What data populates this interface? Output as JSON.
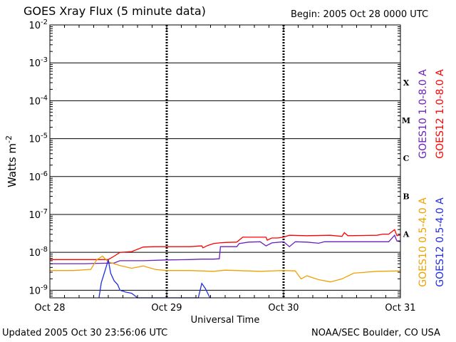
{
  "header": {
    "title": "GOES Xray Flux (5 minute data)",
    "begin": "Begin:  2005 Oct 28 0000 UTC"
  },
  "footer": {
    "updated": "Updated 2005 Oct 30 23:56:06 UTC",
    "source": "NOAA/SEC Boulder, CO USA"
  },
  "chart_data": {
    "type": "line",
    "xlabel": "Universal Time",
    "ylabel": "Watts m",
    "ylabel_sup": "-2",
    "yscale": "log",
    "ylim_exp": [
      -9.2,
      -2
    ],
    "x_ticks": [
      "Oct 28",
      "Oct 29",
      "Oct 30",
      "Oct 31"
    ],
    "xlim_days": [
      0,
      3
    ],
    "y_ticks": [
      {
        "base": "10",
        "exp": "-2",
        "value_exp": -2
      },
      {
        "base": "10",
        "exp": "-3",
        "value_exp": -3
      },
      {
        "base": "10",
        "exp": "-4",
        "value_exp": -4
      },
      {
        "base": "10",
        "exp": "-5",
        "value_exp": -5
      },
      {
        "base": "10",
        "exp": "-6",
        "value_exp": -6
      },
      {
        "base": "10",
        "exp": "-7",
        "value_exp": -7
      },
      {
        "base": "10",
        "exp": "-8",
        "value_exp": -8
      },
      {
        "base": "10",
        "exp": "-9",
        "value_exp": -9
      }
    ],
    "flare_classes": [
      {
        "label": "X",
        "value_exp": -4
      },
      {
        "label": "M",
        "value_exp": -5
      },
      {
        "label": "C",
        "value_exp": -6
      },
      {
        "label": "B",
        "value_exp": -7
      },
      {
        "label": "A",
        "value_exp": -8
      }
    ],
    "grid": true,
    "legend_position": "right",
    "colors": {
      "goes12_long": "#ff0000",
      "goes10_long": "#6a1fbf",
      "goes10_short": "#f0a000",
      "goes12_short": "#1f2ee0"
    },
    "series": [
      {
        "name": "GOES12 1.0-8.0 A",
        "color_key": "goes12_long",
        "points": [
          [
            0.0,
            -8.19
          ],
          [
            0.5,
            -8.19
          ],
          [
            0.55,
            -8.1
          ],
          [
            0.6,
            -8.0
          ],
          [
            0.7,
            -7.98
          ],
          [
            0.8,
            -7.86
          ],
          [
            0.9,
            -7.85
          ],
          [
            1.0,
            -7.85
          ],
          [
            1.2,
            -7.85
          ],
          [
            1.3,
            -7.83
          ],
          [
            1.31,
            -7.88
          ],
          [
            1.35,
            -7.82
          ],
          [
            1.4,
            -7.77
          ],
          [
            1.45,
            -7.75
          ],
          [
            1.5,
            -7.74
          ],
          [
            1.6,
            -7.73
          ],
          [
            1.65,
            -7.6
          ],
          [
            1.8,
            -7.6
          ],
          [
            1.85,
            -7.6
          ],
          [
            1.86,
            -7.68
          ],
          [
            1.9,
            -7.62
          ],
          [
            1.95,
            -7.62
          ],
          [
            2.0,
            -7.6
          ],
          [
            2.05,
            -7.55
          ],
          [
            2.2,
            -7.56
          ],
          [
            2.4,
            -7.55
          ],
          [
            2.5,
            -7.58
          ],
          [
            2.52,
            -7.48
          ],
          [
            2.55,
            -7.56
          ],
          [
            2.8,
            -7.55
          ],
          [
            2.85,
            -7.52
          ],
          [
            2.9,
            -7.52
          ],
          [
            2.95,
            -7.4
          ],
          [
            2.97,
            -7.56
          ],
          [
            3.0,
            -7.54
          ]
        ]
      },
      {
        "name": "GOES10 1.0-8.0 A",
        "color_key": "goes10_long",
        "points": [
          [
            0.0,
            -8.3
          ],
          [
            0.3,
            -8.3
          ],
          [
            0.55,
            -8.28
          ],
          [
            0.6,
            -8.22
          ],
          [
            0.8,
            -8.22
          ],
          [
            1.0,
            -8.2
          ],
          [
            1.2,
            -8.19
          ],
          [
            1.3,
            -8.18
          ],
          [
            1.4,
            -8.18
          ],
          [
            1.45,
            -8.17
          ],
          [
            1.46,
            -7.85
          ],
          [
            1.6,
            -7.85
          ],
          [
            1.62,
            -7.77
          ],
          [
            1.7,
            -7.73
          ],
          [
            1.8,
            -7.72
          ],
          [
            1.85,
            -7.83
          ],
          [
            1.9,
            -7.75
          ],
          [
            2.0,
            -7.72
          ],
          [
            2.05,
            -7.85
          ],
          [
            2.1,
            -7.72
          ],
          [
            2.2,
            -7.73
          ],
          [
            2.3,
            -7.76
          ],
          [
            2.35,
            -7.72
          ],
          [
            2.6,
            -7.72
          ],
          [
            2.8,
            -7.72
          ],
          [
            2.9,
            -7.72
          ],
          [
            2.95,
            -7.55
          ],
          [
            2.97,
            -7.7
          ],
          [
            3.0,
            -7.72
          ]
        ]
      },
      {
        "name": "GOES10 0.5-4.0 A",
        "color_key": "goes10_short",
        "points": [
          [
            0.0,
            -8.48
          ],
          [
            0.2,
            -8.48
          ],
          [
            0.35,
            -8.45
          ],
          [
            0.4,
            -8.2
          ],
          [
            0.45,
            -8.1
          ],
          [
            0.5,
            -8.25
          ],
          [
            0.6,
            -8.35
          ],
          [
            0.7,
            -8.42
          ],
          [
            0.8,
            -8.36
          ],
          [
            0.9,
            -8.45
          ],
          [
            1.0,
            -8.48
          ],
          [
            1.2,
            -8.48
          ],
          [
            1.4,
            -8.5
          ],
          [
            1.5,
            -8.47
          ],
          [
            1.6,
            -8.48
          ],
          [
            1.8,
            -8.5
          ],
          [
            2.0,
            -8.48
          ],
          [
            2.1,
            -8.49
          ],
          [
            2.15,
            -8.7
          ],
          [
            2.2,
            -8.62
          ],
          [
            2.3,
            -8.72
          ],
          [
            2.4,
            -8.78
          ],
          [
            2.5,
            -8.7
          ],
          [
            2.6,
            -8.55
          ],
          [
            2.8,
            -8.5
          ],
          [
            3.0,
            -8.49
          ]
        ]
      },
      {
        "name": "GOES12 0.5-4.0 A",
        "color_key": "goes12_short",
        "points": [
          [
            0.42,
            -9.2
          ],
          [
            0.44,
            -8.8
          ],
          [
            0.47,
            -8.5
          ],
          [
            0.5,
            -8.2
          ],
          [
            0.52,
            -8.55
          ],
          [
            0.55,
            -8.75
          ],
          [
            0.58,
            -8.85
          ],
          [
            0.6,
            -9.0
          ],
          [
            0.65,
            -9.05
          ],
          [
            0.7,
            -9.08
          ],
          [
            0.75,
            -9.2
          ],
          [
            1.27,
            -9.2
          ],
          [
            1.3,
            -8.82
          ],
          [
            1.33,
            -8.95
          ],
          [
            1.37,
            -9.2
          ]
        ]
      }
    ]
  }
}
